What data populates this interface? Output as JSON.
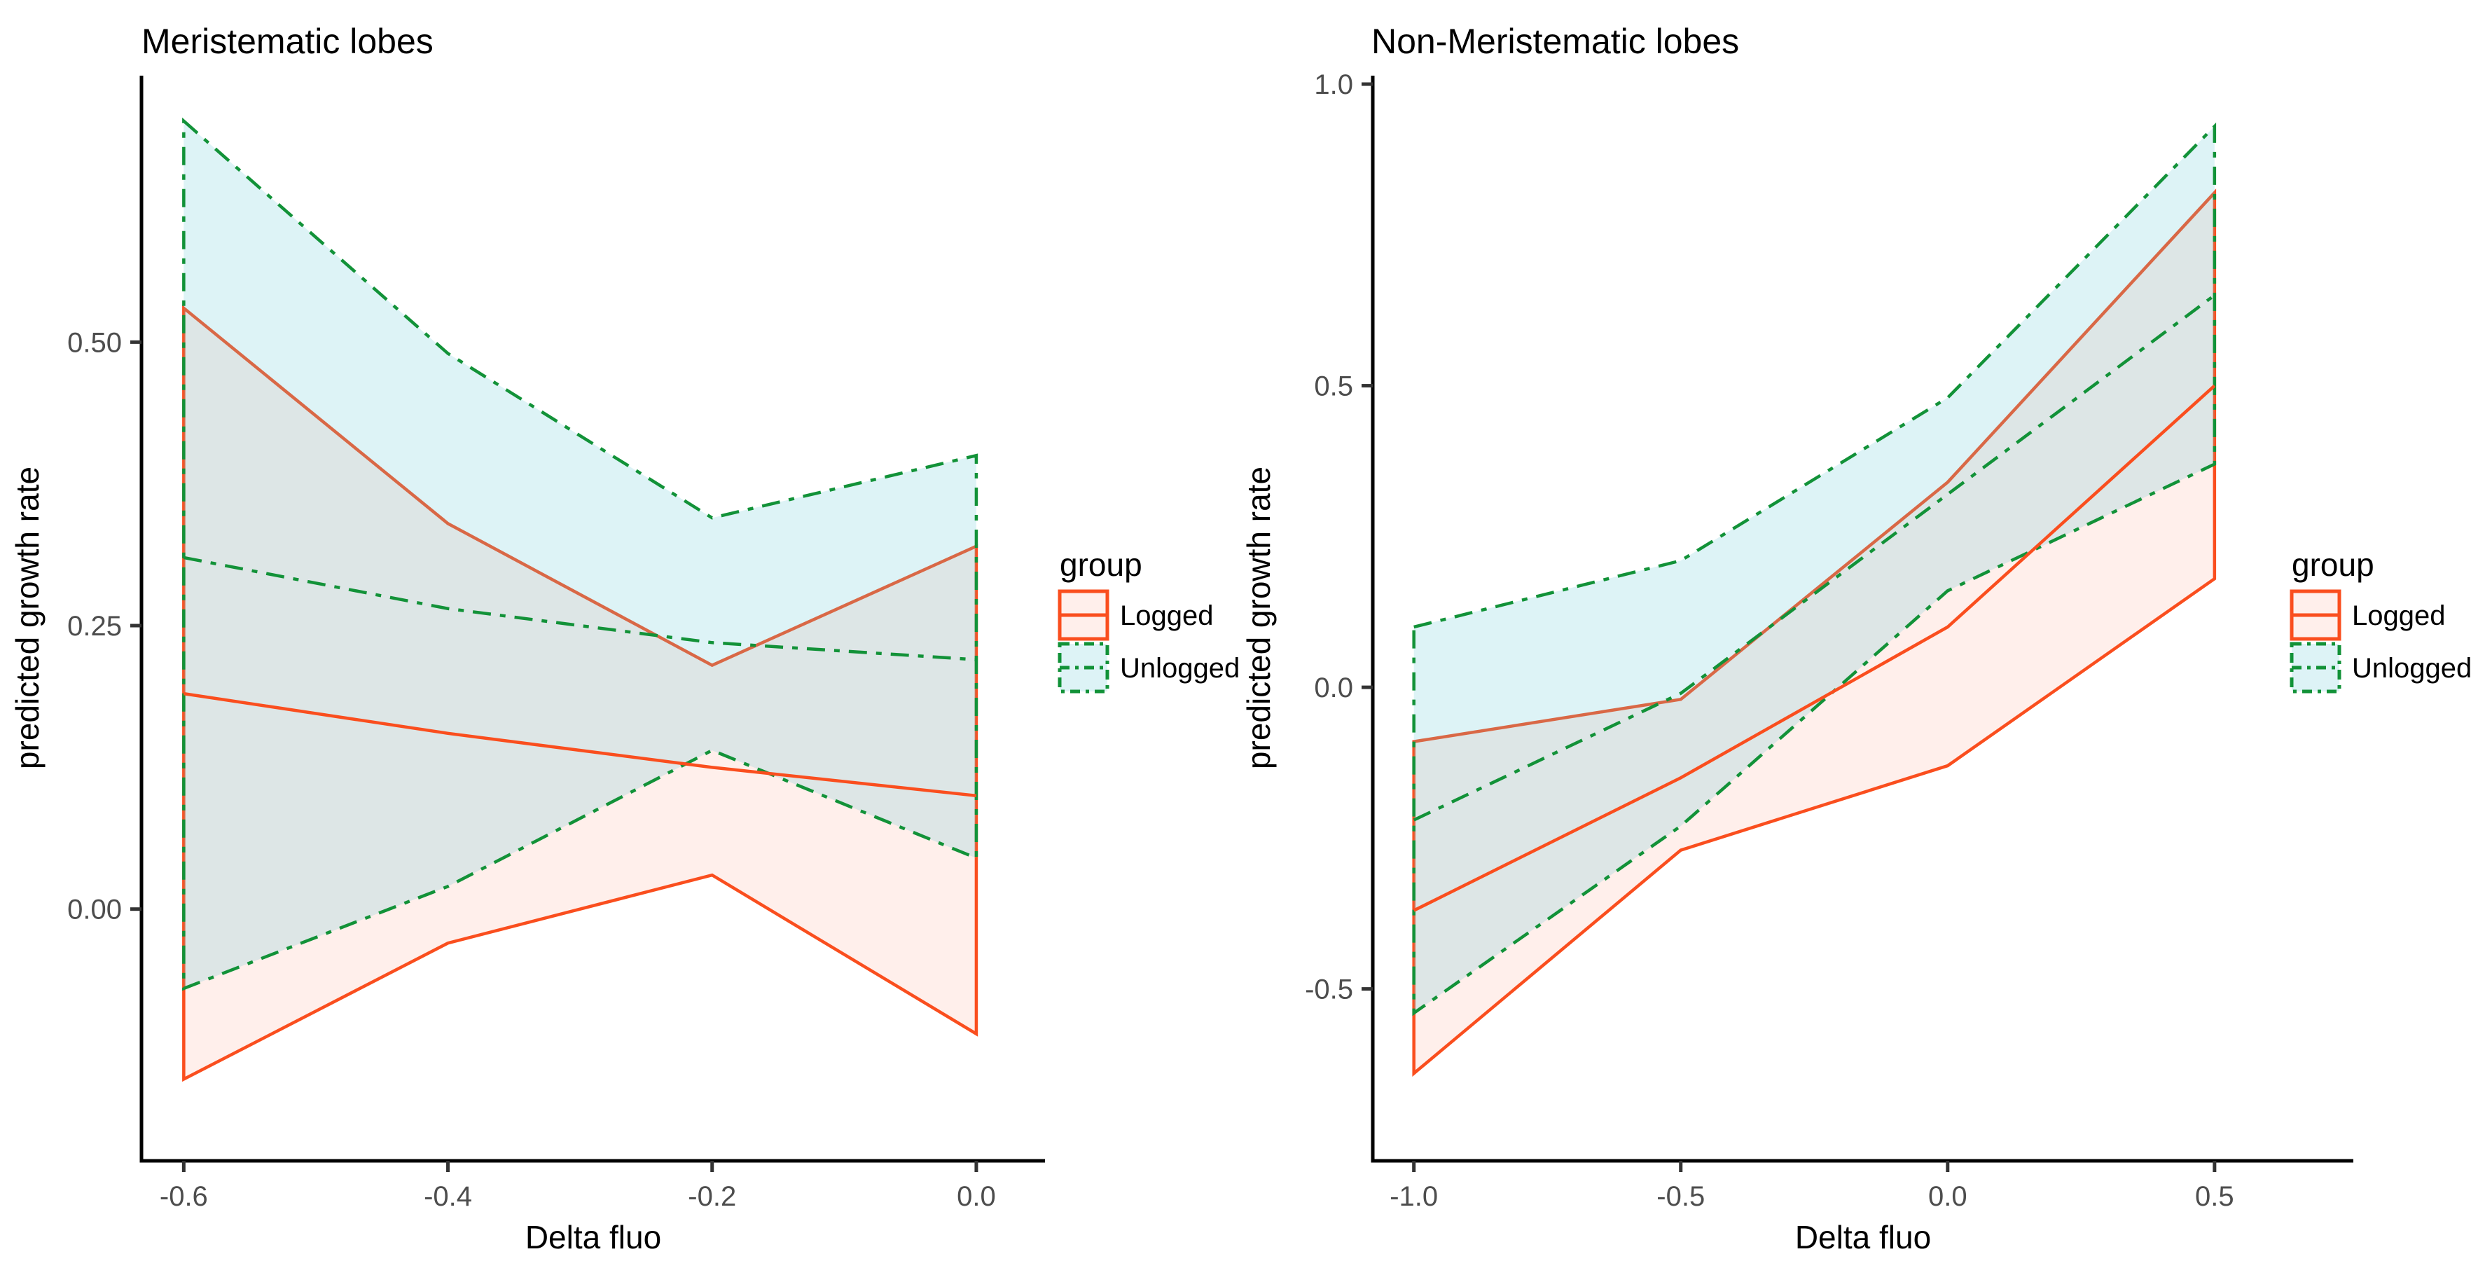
{
  "figure": {
    "background": "#ffffff",
    "colors": {
      "logged_line": "#FA4E1E",
      "unlogged_line": "#129238",
      "logged_fill": "rgba(250,78,30,0.09)",
      "unlogged_fill": "rgba(100,200,212,0.22)",
      "axis": "#000000",
      "tick_text": "#4D4D4D"
    }
  },
  "chart_data": [
    {
      "type": "area",
      "title": "Meristematic lobes",
      "xlabel": "Delta fluo",
      "ylabel": "predicted growth rate",
      "legend_title": "group",
      "legend_position": "right",
      "grid": false,
      "x": [
        -0.6,
        -0.4,
        -0.2,
        0.0
      ],
      "xticks": {
        "values": [
          -0.6,
          -0.4,
          -0.2,
          0.0
        ],
        "labels": [
          "-0.6",
          "-0.4",
          "-0.2",
          "0.0"
        ]
      },
      "yticks": {
        "values": [
          0.0,
          0.25,
          0.5
        ],
        "labels": [
          "0.00",
          "0.25",
          "0.50"
        ]
      },
      "xlim": [
        -0.632,
        0.052
      ],
      "ylim": [
        -0.222,
        0.735
      ],
      "series": [
        {
          "name": "Logged",
          "style": "solid",
          "color": "#FA4E1E",
          "fill": "rgba(250,78,30,0.09)",
          "mean": [
            0.19,
            0.155,
            0.125,
            0.1
          ],
          "upper": [
            0.53,
            0.34,
            0.215,
            0.32
          ],
          "lower": [
            -0.15,
            -0.03,
            0.03,
            -0.11
          ]
        },
        {
          "name": "Unlogged",
          "style": "dashdot",
          "color": "#129238",
          "fill": "rgba(100,200,212,0.22)",
          "mean": [
            0.31,
            0.265,
            0.235,
            0.22
          ],
          "upper": [
            0.695,
            0.49,
            0.345,
            0.4
          ],
          "lower": [
            -0.07,
            0.02,
            0.14,
            0.045
          ]
        }
      ]
    },
    {
      "type": "area",
      "title": "Non-Meristematic lobes",
      "xlabel": "Delta fluo",
      "ylabel": "predicted growth rate",
      "legend_title": "group",
      "legend_position": "right",
      "grid": false,
      "x": [
        -1.0,
        -0.5,
        0.0,
        0.5
      ],
      "xticks": {
        "values": [
          -1.0,
          -0.5,
          0.0,
          0.5
        ],
        "labels": [
          "-1.0",
          "-0.5",
          "0.0",
          "0.5"
        ]
      },
      "yticks": {
        "values": [
          -0.5,
          0.0,
          0.5,
          1.0
        ],
        "labels": [
          "-0.5",
          "0.0",
          "0.5",
          "1.0"
        ]
      },
      "xlim": [
        -1.077,
        0.76
      ],
      "ylim": [
        -0.785,
        1.014
      ],
      "series": [
        {
          "name": "Logged",
          "style": "solid",
          "color": "#FA4E1E",
          "fill": "rgba(250,78,30,0.09)",
          "mean": [
            -0.37,
            -0.15,
            0.1,
            0.5
          ],
          "upper": [
            -0.09,
            -0.02,
            0.34,
            0.82
          ],
          "lower": [
            -0.64,
            -0.27,
            -0.13,
            0.18
          ]
        },
        {
          "name": "Unlogged",
          "style": "dashdot",
          "color": "#129238",
          "fill": "rgba(100,200,212,0.22)",
          "mean": [
            -0.22,
            -0.01,
            0.32,
            0.65
          ],
          "upper": [
            0.1,
            0.21,
            0.48,
            0.93
          ],
          "lower": [
            -0.54,
            -0.23,
            0.16,
            0.37
          ]
        }
      ]
    }
  ]
}
